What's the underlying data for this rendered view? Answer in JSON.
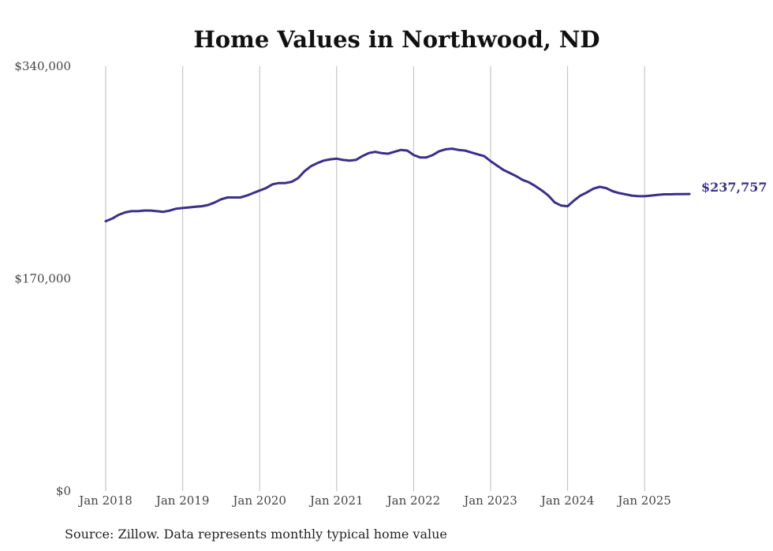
{
  "chart_data": {
    "type": "line",
    "title": "Home Values in Northwood, ND",
    "xlabel": "",
    "ylabel": "",
    "source": "Source: Zillow. Data represents monthly typical home value",
    "ylim": [
      0,
      340000
    ],
    "y_ticks": [
      {
        "value": 0,
        "label": "$0"
      },
      {
        "value": 170000,
        "label": "$170,000"
      },
      {
        "value": 340000,
        "label": "$340,000"
      }
    ],
    "x_ticks": [
      {
        "year": 2018,
        "label": "Jan 2018"
      },
      {
        "year": 2019,
        "label": "Jan 2019"
      },
      {
        "year": 2020,
        "label": "Jan 2020"
      },
      {
        "year": 2021,
        "label": "Jan 2021"
      },
      {
        "year": 2022,
        "label": "Jan 2022"
      },
      {
        "year": 2023,
        "label": "Jan 2023"
      },
      {
        "year": 2024,
        "label": "Jan 2024"
      },
      {
        "year": 2025,
        "label": "Jan 2025"
      }
    ],
    "grid": {
      "vertical": true,
      "horizontal": false
    },
    "line_color": "#3a2f8a",
    "end_label": "$237,757",
    "series": [
      {
        "x": [
          "2018-01",
          "2018-02",
          "2018-03",
          "2018-04",
          "2018-05",
          "2018-06",
          "2018-07",
          "2018-08",
          "2018-09",
          "2018-10",
          "2018-11",
          "2018-12",
          "2019-01",
          "2019-02",
          "2019-03",
          "2019-04",
          "2019-05",
          "2019-06",
          "2019-07",
          "2019-08",
          "2019-09",
          "2019-10",
          "2019-11",
          "2019-12",
          "2020-01",
          "2020-02",
          "2020-03",
          "2020-04",
          "2020-05",
          "2020-06",
          "2020-07",
          "2020-08",
          "2020-09",
          "2020-10",
          "2020-11",
          "2020-12",
          "2021-01",
          "2021-02",
          "2021-03",
          "2021-04",
          "2021-05",
          "2021-06",
          "2021-07",
          "2021-08",
          "2021-09",
          "2021-10",
          "2021-11",
          "2021-12",
          "2022-01",
          "2022-02",
          "2022-03",
          "2022-04",
          "2022-05",
          "2022-06",
          "2022-07",
          "2022-08",
          "2022-09",
          "2022-10",
          "2022-11",
          "2022-12",
          "2023-01",
          "2023-02",
          "2023-03",
          "2023-04",
          "2023-05",
          "2023-06",
          "2023-07",
          "2023-08",
          "2023-09",
          "2023-10",
          "2023-11",
          "2023-12",
          "2024-01",
          "2024-02",
          "2024-03",
          "2024-04",
          "2024-05",
          "2024-06",
          "2024-07",
          "2024-08",
          "2024-09",
          "2024-10",
          "2024-11",
          "2024-12",
          "2025-01",
          "2025-02",
          "2025-03",
          "2025-04",
          "2025-05",
          "2025-06",
          "2025-07",
          "2025-08"
        ],
        "values": [
          216000,
          218000,
          221000,
          223000,
          224000,
          224000,
          224500,
          224500,
          224000,
          223500,
          224500,
          226000,
          226500,
          227000,
          227500,
          228000,
          229000,
          231000,
          233500,
          235000,
          235000,
          235000,
          236500,
          238500,
          240500,
          242500,
          245500,
          246500,
          246500,
          247500,
          250500,
          256000,
          260000,
          262500,
          264500,
          265500,
          266000,
          265000,
          264500,
          265000,
          268000,
          270500,
          271500,
          270500,
          270000,
          271500,
          273000,
          272500,
          269000,
          267000,
          267000,
          269000,
          272000,
          273500,
          274000,
          273000,
          272500,
          271000,
          269500,
          268000,
          264000,
          260500,
          257000,
          254500,
          252000,
          249000,
          247000,
          244000,
          240500,
          236500,
          231000,
          228500,
          228000,
          232500,
          236500,
          239000,
          242000,
          243500,
          242500,
          240000,
          238500,
          237500,
          236500,
          236000,
          236000,
          236500,
          237000,
          237500,
          237500,
          237600,
          237700,
          237757
        ]
      }
    ]
  }
}
